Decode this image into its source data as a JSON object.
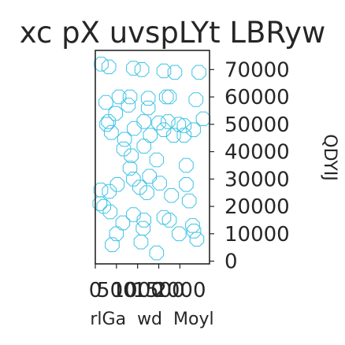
{
  "chart_data": {
    "type": "scatter",
    "title": "xc pX uvspLYt LBRyw",
    "xlabel": "rlGa  wd  Moyl",
    "ylabel": "QDYIJ",
    "xlim": [
      0,
      2700
    ],
    "ylim": [
      -1000,
      77000
    ],
    "yaxis_position": "right",
    "grid": false,
    "legend": "none",
    "x_ticks": [
      0,
      500,
      1000,
      1500,
      2000
    ],
    "x_tick_labels": [
      "0",
      "500",
      "1000",
      "1500",
      "2000"
    ],
    "y_ticks": [
      0,
      10000,
      20000,
      30000,
      40000,
      50000,
      60000,
      70000
    ],
    "y_tick_labels": [
      "0",
      "10000",
      "20000",
      "30000",
      "40000",
      "50000",
      "60000",
      "70000"
    ],
    "marker": "octagon-open",
    "color": "#3cc3e6",
    "series": [
      {
        "x": [
          140,
          320,
          900,
          1100,
          1620,
          1880,
          2450,
          1750,
          560,
          820,
          1250,
          1680,
          2380,
          250,
          780,
          1250,
          480,
          2550,
          1150,
          310,
          1720,
          1500,
          270,
          1970,
          2100,
          920,
          1620,
          2320,
          2100,
          1300,
          1850,
          380,
          690,
          1150,
          670,
          850,
          1450,
          2150,
          820,
          1280,
          2150,
          1520,
          520,
          900,
          1050,
          130,
          330,
          1220,
          1800,
          2220,
          110,
          200,
          350,
          900,
          1620,
          1750,
          1150,
          650,
          2300,
          1130,
          2330,
          500,
          1980,
          2400,
          1080,
          400,
          1450
        ],
        "y": [
          72000,
          71000,
          70500,
          70000,
          69500,
          69000,
          69000,
          60000,
          60000,
          60000,
          59500,
          60000,
          59000,
          58000,
          57000,
          56000,
          54000,
          52000,
          51000,
          51000,
          51000,
          50500,
          50000,
          50000,
          49500,
          48500,
          48000,
          48000,
          46000,
          46000,
          46000,
          47000,
          44500,
          42000,
          41000,
          38500,
          37000,
          35000,
          34000,
          31000,
          28000,
          28500,
          28000,
          30000,
          27000,
          26000,
          25500,
          25000,
          24000,
          22000,
          21000,
          20000,
          18000,
          17000,
          16000,
          15000,
          15000,
          14000,
          13000,
          12000,
          11000,
          10000,
          10000,
          8000,
          7000,
          6000,
          3000
        ]
      }
    ]
  }
}
